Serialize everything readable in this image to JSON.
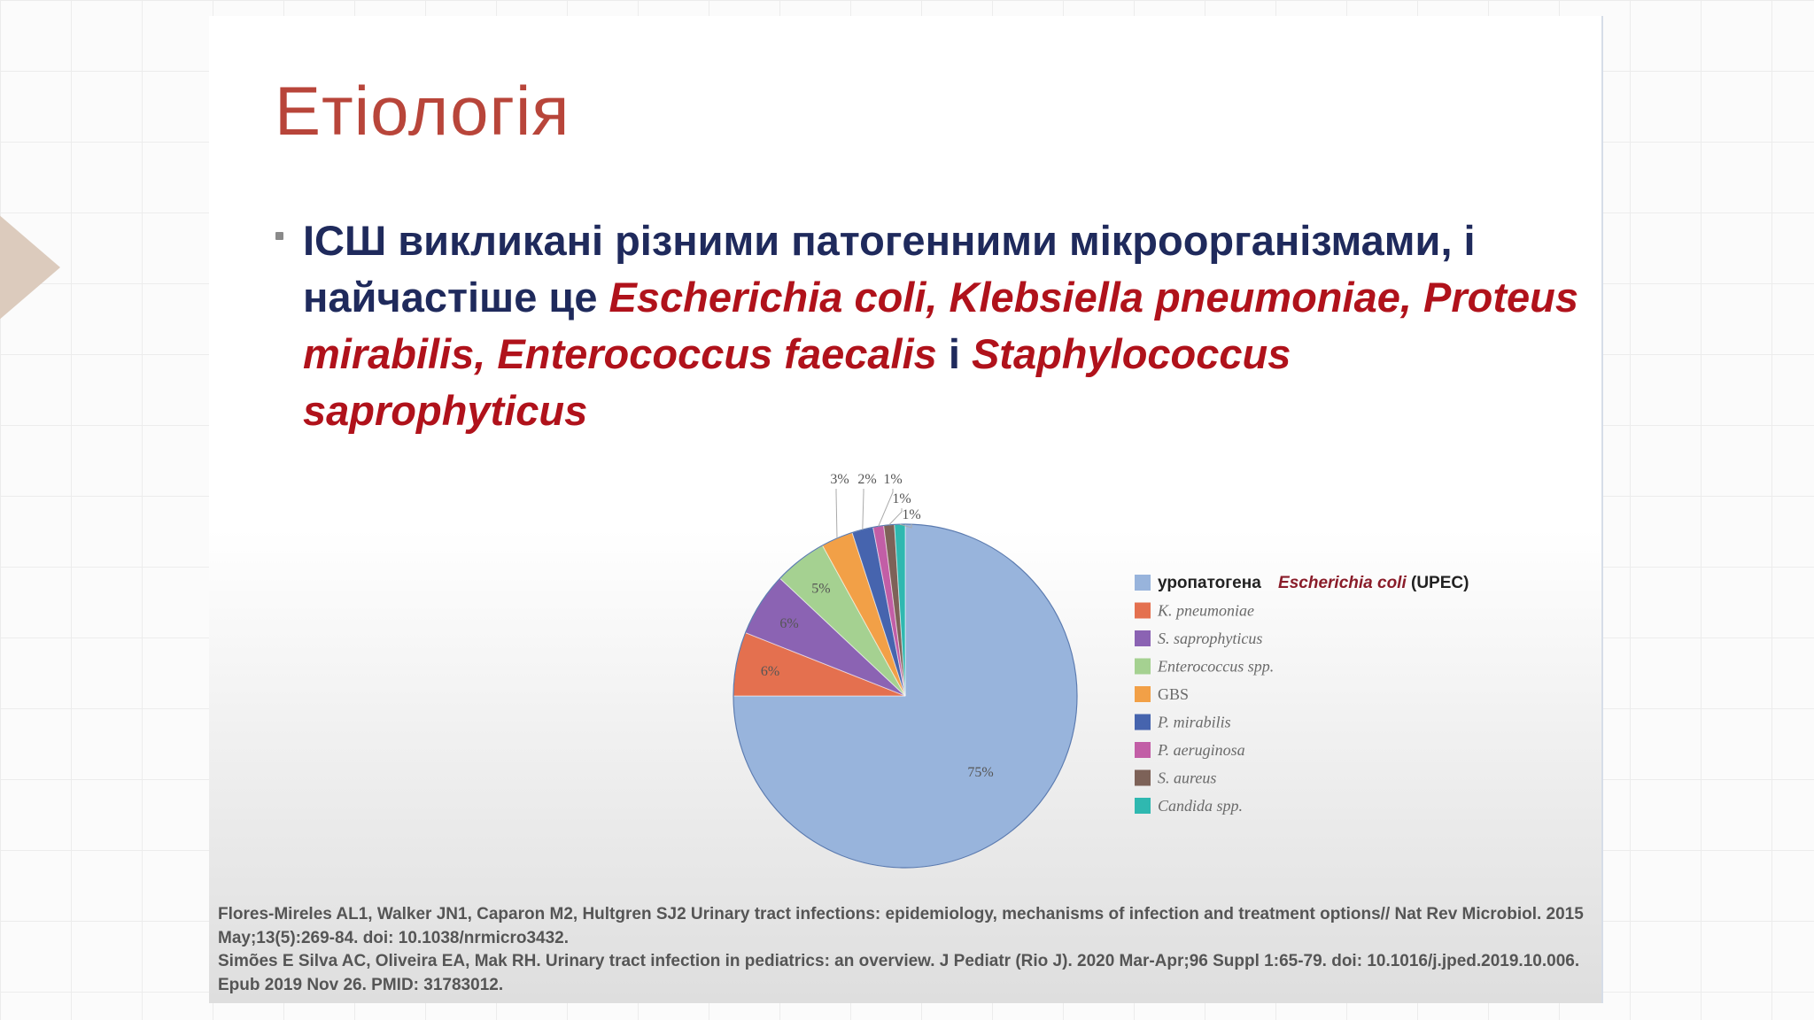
{
  "slide": {
    "title": "Етіологія",
    "bullet": {
      "text_1": "ІСШ викликані різними патогенними мікроорганізмами, і найчастіше це ",
      "species_1": "Escherichia coli, Klebsiella pneumoniae, Proteus mirabilis, Enterococcus faecalis",
      "text_2": " і ",
      "species_2": "Staphylococcus saprophyticus"
    },
    "references": [
      "Flores-Mireles AL1, Walker JN1, Caparon M2, Hultgren SJ2 Urinary tract infections: epidemiology, mechanisms of infection and treatment options// Nat Rev Microbiol. 2015 May;13(5):269-84. doi: 10.1038/nrmicro3432.",
      "Simões E Silva AC, Oliveira EA, Mak RH. Urinary tract infection in pediatrics: an overview. J Pediatr (Rio J). 2020 Mar-Apr;96 Suppl 1:65-79. doi: 10.1016/j.jped.2019.10.006. Epub 2019 Nov 26. PMID: 31783012."
    ]
  },
  "chart_data": {
    "type": "pie",
    "title": "",
    "unit": "%",
    "legend_position": "right",
    "slices": [
      {
        "label": "уропатогена Escherichia coli (UPEC)",
        "legend_prefix": "уропатогена",
        "legend_italic": "Escherichia coli",
        "legend_suffix": "(UPEC)",
        "value": 75,
        "value_label": "75%",
        "color": "#98b4dc"
      },
      {
        "label": "K. pneumoniae",
        "value": 6,
        "value_label": "6%",
        "color": "#e4704f"
      },
      {
        "label": "S. saprophyticus",
        "value": 6,
        "value_label": "6%",
        "color": "#8b63b3"
      },
      {
        "label": "Enterococcus spp.",
        "value": 5,
        "value_label": "5%",
        "color": "#a5d191"
      },
      {
        "label": "GBS",
        "value": 3,
        "value_label": "3%",
        "color": "#f2a047"
      },
      {
        "label": "P. mirabilis",
        "value": 2,
        "value_label": "2%",
        "color": "#4664ae"
      },
      {
        "label": "P. aeruginosa",
        "value": 1,
        "value_label": "1%",
        "color": "#c25ea6"
      },
      {
        "label": "S. aureus",
        "value": 1,
        "value_label": "1%",
        "color": "#7d6258"
      },
      {
        "label": "Candida spp.",
        "value": 1,
        "value_label": "1%",
        "color": "#2fb8b0"
      }
    ]
  }
}
